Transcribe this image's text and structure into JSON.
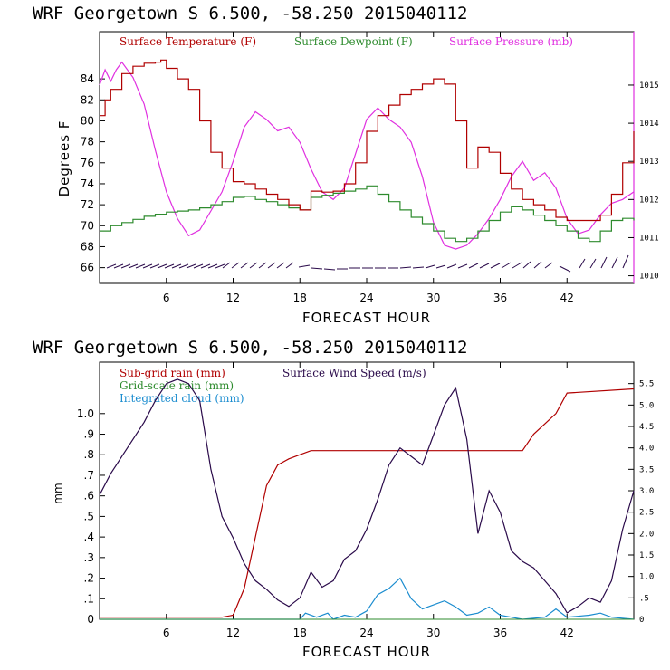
{
  "colors": {
    "temperature": "#b00000",
    "dewpoint": "#2e8b2e",
    "pressure": "#e030e0",
    "subgrid": "#b00000",
    "gridscale": "#2e8b2e",
    "cloud": "#1a8ccf",
    "wind": "#2a0a4a",
    "axis": "#000000",
    "pressure_axis": "#e030e0"
  },
  "chart_data": [
    {
      "type": "line",
      "title": "WRF   Georgetown S   6.500, -58.250  2015040112",
      "xlabel": "FORECAST HOUR",
      "ylabel": "Degrees F",
      "xlim": [
        0,
        48
      ],
      "ylim": [
        64.5,
        88.5
      ],
      "xticks": [
        "6",
        "12",
        "18",
        "24",
        "30",
        "36",
        "42"
      ],
      "yticks": [
        "66",
        "68",
        "70",
        "72",
        "74",
        "76",
        "78",
        "80",
        "82",
        "84"
      ],
      "y2label": "",
      "y2lim": [
        1009.8,
        1016.4
      ],
      "y2ticks": [
        "1010",
        "1011",
        "1012",
        "1013",
        "1014",
        "1015"
      ],
      "legend": [
        "Surface Temperature (F)",
        "Surface Dewpoint (F)",
        "Surface Pressure (mb)"
      ],
      "series": [
        {
          "name": "Surface Temperature (F)",
          "axis": "left",
          "x": [
            0,
            0.5,
            1,
            2,
            3,
            4,
            5,
            5.5,
            6,
            7,
            8,
            9,
            10,
            11,
            12,
            13,
            14,
            15,
            16,
            17,
            18,
            19,
            20,
            21,
            22,
            23,
            24,
            25,
            26,
            27,
            28,
            29,
            30,
            31,
            32,
            33,
            34,
            35,
            36,
            37,
            38,
            39,
            40,
            41,
            42,
            43,
            44,
            45,
            46,
            47,
            48
          ],
          "values": [
            80.5,
            82,
            83,
            84.5,
            85.2,
            85.5,
            85.6,
            85.8,
            85,
            84,
            83,
            80,
            77,
            75.5,
            74.2,
            74,
            73.5,
            73,
            72.5,
            72,
            71.5,
            73.3,
            73.2,
            73.3,
            74,
            76,
            79,
            80.5,
            81.5,
            82.5,
            83,
            83.5,
            84,
            83.5,
            80,
            75.5,
            77.5,
            77,
            75,
            73.5,
            72.5,
            72,
            71.5,
            70.8,
            70.5,
            70.5,
            70.5,
            71,
            73,
            76,
            79
          ]
        },
        {
          "name": "Surface Dewpoint (F)",
          "axis": "left",
          "x": [
            0,
            1,
            2,
            3,
            4,
            5,
            6,
            7,
            8,
            9,
            10,
            11,
            12,
            13,
            14,
            15,
            16,
            17,
            18,
            19,
            20,
            21,
            22,
            23,
            24,
            25,
            26,
            27,
            28,
            29,
            30,
            31,
            32,
            33,
            34,
            35,
            36,
            37,
            38,
            39,
            40,
            41,
            42,
            43,
            44,
            45,
            46,
            47,
            48
          ],
          "values": [
            69.5,
            70,
            70.3,
            70.6,
            70.9,
            71.1,
            71.3,
            71.4,
            71.5,
            71.7,
            72,
            72.3,
            72.7,
            72.8,
            72.5,
            72.3,
            72,
            71.7,
            71.5,
            72.7,
            72.9,
            73.1,
            73.3,
            73.5,
            73.8,
            73,
            72.3,
            71.5,
            70.8,
            70.2,
            69.5,
            68.8,
            68.5,
            68.8,
            69.5,
            70.5,
            71.3,
            71.8,
            71.5,
            71,
            70.5,
            70,
            69.5,
            68.8,
            68.5,
            69.5,
            70.5,
            70.7,
            70.5
          ]
        },
        {
          "name": "Surface Pressure (mb)",
          "axis": "right",
          "x": [
            0,
            0.5,
            1,
            1.5,
            2,
            3,
            4,
            5,
            6,
            7,
            8,
            9,
            10,
            11,
            12,
            13,
            14,
            15,
            16,
            17,
            18,
            19,
            20,
            21,
            22,
            23,
            24,
            25,
            26,
            27,
            28,
            29,
            30,
            31,
            32,
            33,
            34,
            35,
            36,
            37,
            38,
            39,
            40,
            41,
            42,
            43,
            44,
            45,
            46,
            47,
            48
          ],
          "values": [
            1015,
            1015.4,
            1015.1,
            1015.4,
            1015.6,
            1015.2,
            1014.5,
            1013.3,
            1012.2,
            1011.5,
            1011.05,
            1011.2,
            1011.7,
            1012.2,
            1013,
            1013.9,
            1014.3,
            1014.1,
            1013.8,
            1013.9,
            1013.5,
            1012.8,
            1012.2,
            1012,
            1012.3,
            1013.2,
            1014.1,
            1014.4,
            1014.1,
            1013.9,
            1013.5,
            1012.6,
            1011.4,
            1010.8,
            1010.7,
            1010.8,
            1011.1,
            1011.5,
            1012,
            1012.6,
            1013,
            1012.5,
            1012.7,
            1012.3,
            1011.5,
            1011.1,
            1011.2,
            1011.6,
            1011.9,
            1012,
            1012.2
          ]
        }
      ]
    },
    {
      "type": "line",
      "title": "WRF   Georgetown S   6.500, -58.250  2015040112",
      "xlabel": "FORECAST HOUR",
      "ylabel": "mm",
      "xlim": [
        0,
        48
      ],
      "ylim": [
        0,
        1.25
      ],
      "xticks": [
        "6",
        "12",
        "18",
        "24",
        "30",
        "36",
        "42"
      ],
      "yticks": [
        "0",
        ".1",
        ".2",
        ".3",
        ".4",
        ".5",
        ".6",
        ".7",
        ".8",
        ".9",
        "1.0"
      ],
      "y2lim": [
        0,
        6
      ],
      "y2ticks": [
        "0",
        ".5",
        "1.0",
        "1.5",
        "2.0",
        "2.5",
        "3.0",
        "3.5",
        "4.0",
        "4.5",
        "5.0",
        "5.5"
      ],
      "legend": [
        "Sub-grid rain (mm)",
        "Surface Wind Speed (m/s)",
        "Grid-scale rain (mm)",
        "Integrated cloud (mm)"
      ],
      "series": [
        {
          "name": "Sub-grid rain (mm)",
          "axis": "left",
          "x": [
            0,
            11,
            12,
            13,
            14,
            15,
            16,
            17,
            18,
            19,
            20,
            38,
            39,
            40,
            41,
            42,
            48
          ],
          "values": [
            0.01,
            0.01,
            0.02,
            0.15,
            0.4,
            0.65,
            0.75,
            0.78,
            0.8,
            0.82,
            0.82,
            0.82,
            0.9,
            0.95,
            1.0,
            1.1,
            1.12
          ]
        },
        {
          "name": "Grid-scale rain (mm)",
          "axis": "left",
          "x": [
            0,
            48
          ],
          "values": [
            0,
            0
          ]
        },
        {
          "name": "Integrated cloud (mm)",
          "axis": "left",
          "x": [
            0,
            18,
            18.5,
            19.5,
            20.5,
            21,
            22,
            23,
            24,
            25,
            26,
            27,
            28,
            29,
            30,
            31,
            32,
            33,
            34,
            35,
            36,
            37,
            38,
            40,
            41,
            42,
            44,
            45,
            46,
            48
          ],
          "values": [
            0,
            0,
            0.03,
            0.01,
            0.03,
            0,
            0.02,
            0.01,
            0.04,
            0.12,
            0.15,
            0.2,
            0.1,
            0.05,
            0.07,
            0.09,
            0.06,
            0.02,
            0.03,
            0.06,
            0.02,
            0.01,
            0,
            0.01,
            0.05,
            0.01,
            0.02,
            0.03,
            0.01,
            0
          ]
        },
        {
          "name": "Surface Wind Speed (m/s)",
          "axis": "right",
          "x": [
            0,
            1,
            2,
            3,
            4,
            5,
            6,
            7,
            8,
            9,
            10,
            11,
            12,
            13,
            14,
            15,
            16,
            17,
            18,
            19,
            20,
            21,
            22,
            23,
            24,
            25,
            26,
            27,
            28,
            29,
            30,
            31,
            32,
            33,
            34,
            35,
            36,
            37,
            38,
            39,
            40,
            41,
            42,
            43,
            44,
            45,
            46,
            47,
            48
          ],
          "values": [
            2.9,
            3.4,
            3.8,
            4.2,
            4.6,
            5.1,
            5.5,
            5.6,
            5.5,
            5.1,
            3.5,
            2.4,
            1.9,
            1.3,
            0.9,
            0.7,
            0.45,
            0.3,
            0.5,
            1.1,
            0.75,
            0.9,
            1.4,
            1.6,
            2.1,
            2.8,
            3.6,
            4.0,
            3.8,
            3.6,
            4.3,
            5.0,
            5.4,
            4.2,
            2.0,
            3.0,
            2.5,
            1.6,
            1.35,
            1.2,
            0.9,
            0.6,
            0.15,
            0.3,
            0.5,
            0.4,
            0.9,
            2.1,
            3.0
          ]
        }
      ]
    }
  ]
}
